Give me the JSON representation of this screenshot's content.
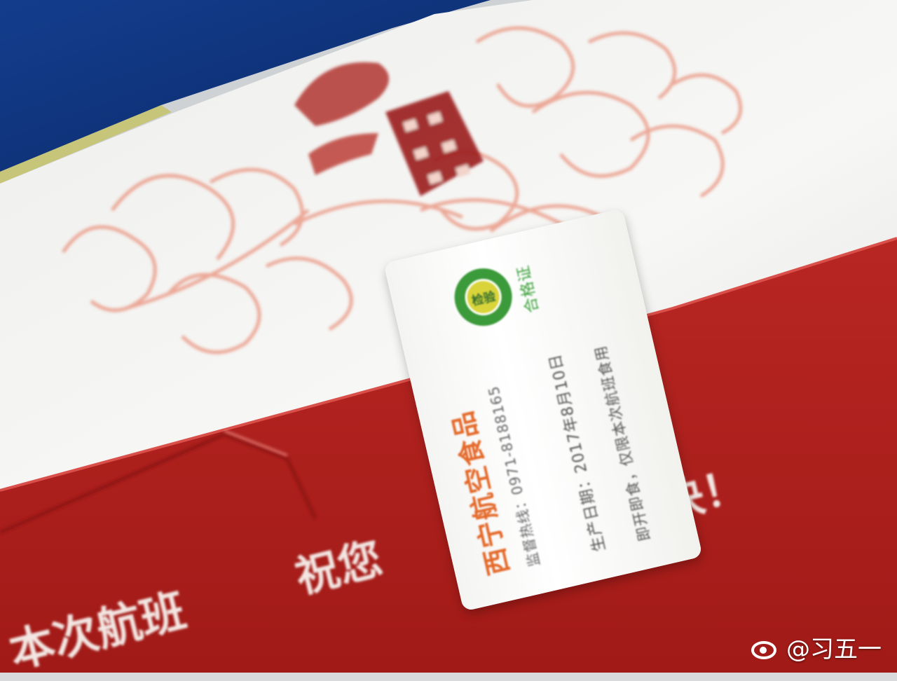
{
  "sticker": {
    "company": "西宁航空食品",
    "hotline": "监督热线：0971-8188165",
    "production_date": "生产日期：2017年8月10日",
    "notice": "即开即食，仅限本次航班食用",
    "qa_label": "合格证",
    "badge_text": "检验"
  },
  "box_print": {
    "text_1": "本次航班",
    "text_2": "祝您",
    "text_3": "快！"
  },
  "watermark": {
    "icon": "weibo-icon",
    "text": "@习五一"
  },
  "colors": {
    "box_red": "#b3201c",
    "box_white": "#f2f0ee",
    "pattern": "#e98b73",
    "sticker_title": "#e46a2b",
    "badge_green": "#3b9a3a"
  }
}
